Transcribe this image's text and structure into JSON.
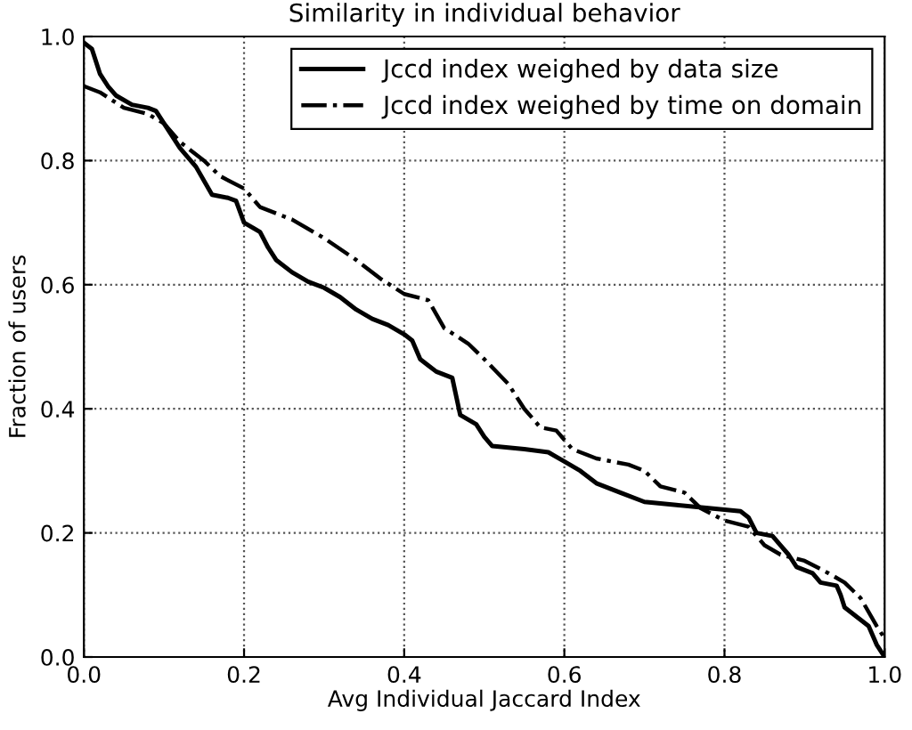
{
  "chart_data": {
    "type": "line",
    "title": "Similarity in individual behavior",
    "xlabel": "Avg Individual Jaccard Index",
    "ylabel": "Fraction of users",
    "xlim": [
      0,
      1
    ],
    "ylim": [
      0,
      1
    ],
    "xticks": [
      {
        "value": 0,
        "label": "0.0"
      },
      {
        "value": 0.2,
        "label": "0.2"
      },
      {
        "value": 0.4,
        "label": "0.4"
      },
      {
        "value": 0.6,
        "label": "0.6"
      },
      {
        "value": 0.8,
        "label": "0.8"
      },
      {
        "value": 1,
        "label": "1.0"
      }
    ],
    "yticks": [
      {
        "value": 0,
        "label": "0.0"
      },
      {
        "value": 0.2,
        "label": "0.2"
      },
      {
        "value": 0.4,
        "label": "0.4"
      },
      {
        "value": 0.6,
        "label": "0.6"
      },
      {
        "value": 0.8,
        "label": "0.8"
      },
      {
        "value": 1,
        "label": "1.0"
      }
    ],
    "grid": true,
    "legend": "top right",
    "series": [
      {
        "name": "Jccd index weighed by data size",
        "color": "#000000",
        "line_style": "solid",
        "x": [
          0,
          0.01,
          0.02,
          0.03,
          0.04,
          0.06,
          0.08,
          0.09,
          0.1,
          0.12,
          0.14,
          0.16,
          0.18,
          0.19,
          0.2,
          0.22,
          0.23,
          0.24,
          0.26,
          0.28,
          0.3,
          0.32,
          0.34,
          0.36,
          0.38,
          0.4,
          0.41,
          0.42,
          0.43,
          0.44,
          0.46,
          0.465,
          0.47,
          0.49,
          0.5,
          0.51,
          0.55,
          0.58,
          0.6,
          0.62,
          0.64,
          0.67,
          0.7,
          0.74,
          0.78,
          0.82,
          0.83,
          0.84,
          0.86,
          0.87,
          0.88,
          0.89,
          0.91,
          0.92,
          0.94,
          0.945,
          0.95,
          0.97,
          0.98,
          0.99,
          1.0
        ],
        "values": [
          0.99,
          0.98,
          0.94,
          0.92,
          0.905,
          0.89,
          0.885,
          0.88,
          0.86,
          0.82,
          0.79,
          0.745,
          0.74,
          0.735,
          0.7,
          0.685,
          0.66,
          0.64,
          0.62,
          0.605,
          0.595,
          0.58,
          0.56,
          0.545,
          0.535,
          0.52,
          0.51,
          0.48,
          0.47,
          0.46,
          0.45,
          0.42,
          0.39,
          0.375,
          0.355,
          0.34,
          0.335,
          0.33,
          0.315,
          0.3,
          0.28,
          0.265,
          0.25,
          0.245,
          0.24,
          0.235,
          0.225,
          0.2,
          0.195,
          0.18,
          0.165,
          0.145,
          0.135,
          0.12,
          0.115,
          0.1,
          0.08,
          0.06,
          0.05,
          0.02,
          0.0
        ]
      },
      {
        "name": "Jccd index weighed by time on domain",
        "color": "#000000",
        "line_style": "dashed",
        "x": [
          0,
          0.02,
          0.05,
          0.08,
          0.1,
          0.12,
          0.15,
          0.17,
          0.2,
          0.22,
          0.26,
          0.3,
          0.34,
          0.37,
          0.4,
          0.43,
          0.45,
          0.48,
          0.5,
          0.53,
          0.55,
          0.57,
          0.59,
          0.61,
          0.64,
          0.68,
          0.7,
          0.72,
          0.75,
          0.77,
          0.8,
          0.83,
          0.85,
          0.87,
          0.9,
          0.93,
          0.95,
          0.97,
          0.99,
          1.0
        ],
        "values": [
          0.92,
          0.91,
          0.885,
          0.875,
          0.86,
          0.83,
          0.8,
          0.775,
          0.755,
          0.725,
          0.705,
          0.675,
          0.64,
          0.61,
          0.585,
          0.575,
          0.53,
          0.505,
          0.48,
          0.44,
          0.4,
          0.37,
          0.365,
          0.335,
          0.32,
          0.31,
          0.3,
          0.275,
          0.265,
          0.24,
          0.22,
          0.21,
          0.18,
          0.165,
          0.155,
          0.135,
          0.12,
          0.095,
          0.05,
          0.03
        ]
      }
    ]
  }
}
